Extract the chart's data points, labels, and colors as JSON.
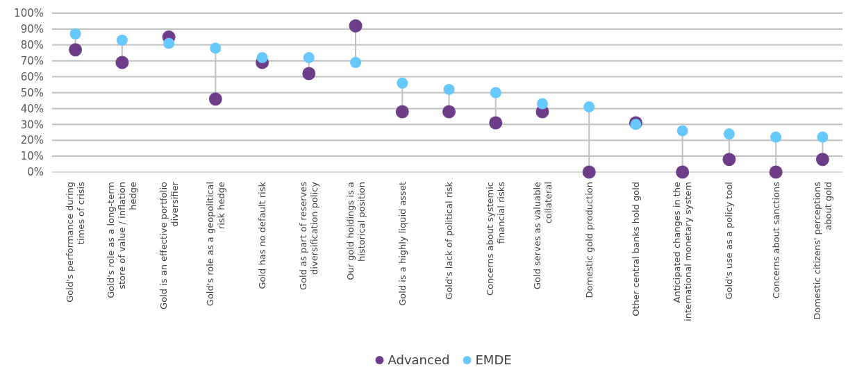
{
  "chart_data": {
    "type": "scatter",
    "categories": [
      "Gold's performance during times of crisis",
      "Gold's role as a long-term store of value / inflation hedge",
      "Gold is an effective portfolio diversifier",
      "Gold's role as a geopolitical risk hedge",
      "Gold has no default risk",
      "Gold as part of reserves diversification policy",
      "Our gold holdings is a historical position",
      "Gold is a highly liquid asset",
      "Gold's lack of political risk",
      "Concerns about systemic financial risks",
      "Gold serves as valuable collateral",
      "Domestic gold production",
      "Other central banks hold gold",
      "Anticipated changes in the international monetary system",
      "Gold's use as a policy tool",
      "Concerns about sanctions",
      "Domestic citizens' perceptions about gold"
    ],
    "series": [
      {
        "name": "Advanced",
        "color": "#6e3d8a",
        "values": [
          77,
          69,
          85,
          46,
          69,
          62,
          92,
          38,
          38,
          31,
          38,
          0,
          31,
          0,
          8,
          0,
          8
        ]
      },
      {
        "name": "EMDE",
        "color": "#66c8fc",
        "values": [
          87,
          83,
          81,
          78,
          72,
          72,
          69,
          56,
          52,
          50,
          43,
          41,
          30,
          26,
          24,
          22,
          22
        ]
      }
    ],
    "ylim": [
      0,
      100
    ],
    "yticks": [
      {
        "value": 0,
        "label": "0%"
      },
      {
        "value": 10,
        "label": "10%"
      },
      {
        "value": 20,
        "label": "20%"
      },
      {
        "value": 30,
        "label": "30%"
      },
      {
        "value": 40,
        "label": "40%"
      },
      {
        "value": 50,
        "label": "50%"
      },
      {
        "value": 60,
        "label": "60%"
      },
      {
        "value": 70,
        "label": "70%"
      },
      {
        "value": 80,
        "label": "80%"
      },
      {
        "value": 90,
        "label": "90%"
      },
      {
        "value": 100,
        "label": "100%"
      }
    ],
    "grid": "y",
    "legend": "bottom",
    "marker": "circle"
  }
}
